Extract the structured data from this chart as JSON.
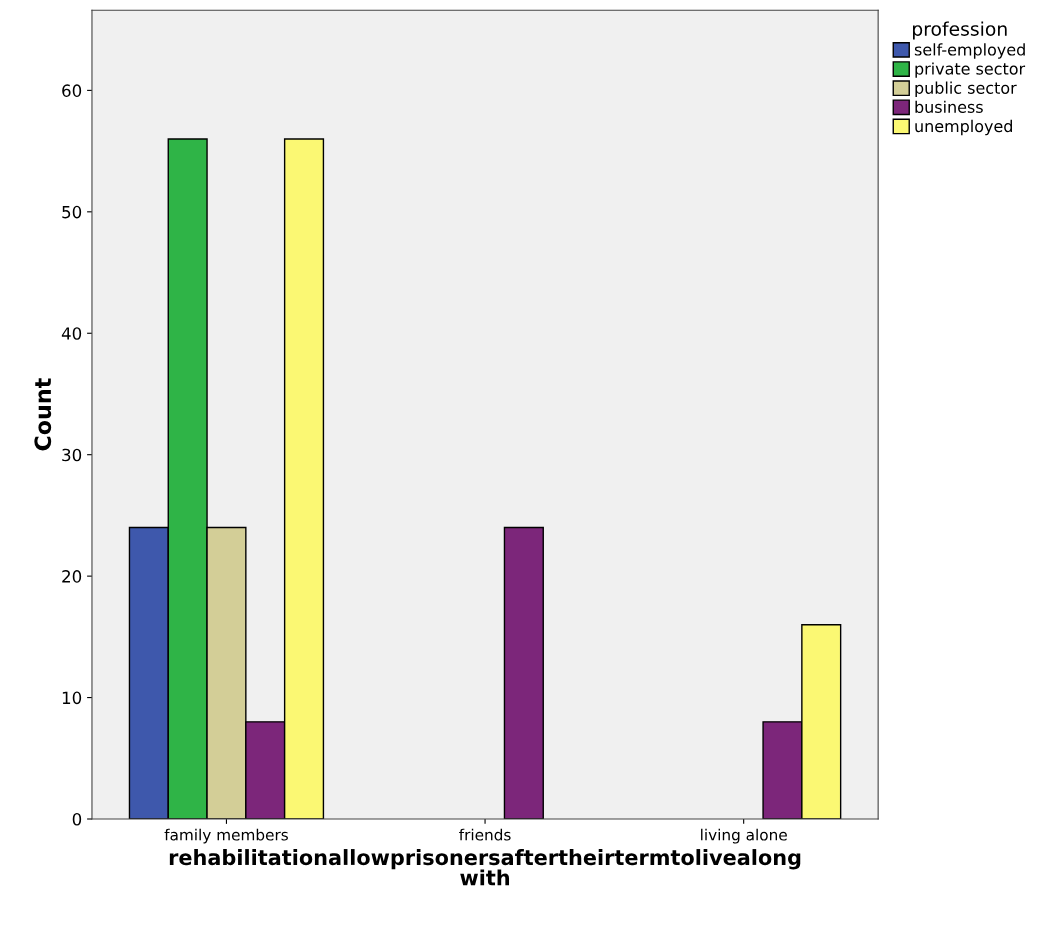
{
  "chart_data": {
    "type": "bar",
    "xlabel": "rehabilitationallowprisonersaftertheirtermtolivealong\nwith",
    "ylabel": "Count",
    "legend_title": "profession",
    "categories": [
      "family members",
      "friends",
      "living alone"
    ],
    "series": [
      {
        "name": "self-employed",
        "color": "#3e58ac",
        "values": [
          24,
          null,
          null
        ]
      },
      {
        "name": "private sector",
        "color": "#2fb447",
        "values": [
          56,
          null,
          null
        ]
      },
      {
        "name": "public sector",
        "color": "#d3ce97",
        "values": [
          24,
          null,
          null
        ]
      },
      {
        "name": "business",
        "color": "#7c267a",
        "values": [
          8,
          24,
          8
        ]
      },
      {
        "name": "unemployed",
        "color": "#fbf873",
        "values": [
          56,
          null,
          16
        ]
      }
    ],
    "ylim": [
      0,
      66.6
    ],
    "yticks": [
      0,
      10,
      20,
      30,
      40,
      50,
      60
    ],
    "grid": false,
    "legend": "top right"
  }
}
